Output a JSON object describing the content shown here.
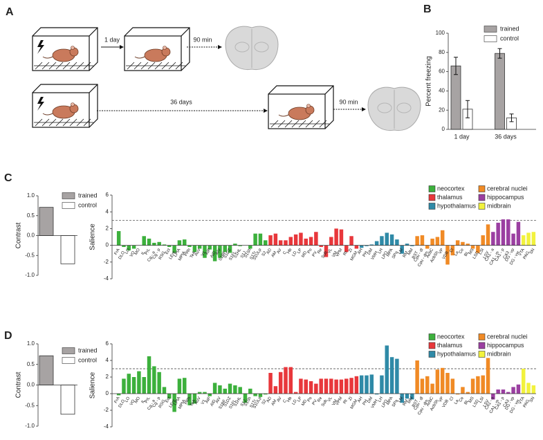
{
  "panel_labels": [
    "A",
    "B",
    "C",
    "D"
  ],
  "diagram": {
    "steps": [
      "1 day",
      "90 min",
      "36 days",
      "90 min"
    ]
  },
  "chart_data": [
    {
      "type": "bar",
      "ylabel": "Percent freezing",
      "categories": [
        "1 day",
        "36 days"
      ],
      "series": [
        {
          "name": "trained",
          "color": "#a7a3a3",
          "values": [
            66,
            79
          ],
          "errors": [
            9,
            5
          ]
        },
        {
          "name": "control",
          "color": "#ffffff",
          "values": [
            21,
            12
          ],
          "errors": [
            9,
            4
          ]
        }
      ],
      "ylim": [
        0,
        100
      ],
      "yticks": [
        0,
        20,
        40,
        60,
        80,
        100
      ],
      "legend": "upper right"
    },
    {
      "type": "bar",
      "ylabel": "Contrast",
      "series": [
        {
          "name": "trained",
          "color": "#a7a3a3",
          "values": [
            0.71
          ]
        },
        {
          "name": "control",
          "color": "#ffffff",
          "values": [
            -0.71
          ]
        }
      ],
      "ylim": [
        -1,
        1
      ],
      "yticks": [
        {
          "value": -1,
          "label": "-1.0"
        },
        -0.5,
        {
          "value": 0,
          "label": "0.0"
        },
        0.5,
        {
          "value": 1,
          "label": "1.0"
        }
      ],
      "legend": "upper right"
    },
    {
      "type": "bar",
      "ylabel": "Salience",
      "reference_line": 3,
      "series": [
        {
          "name": "neocortex",
          "color": "#3cb03c",
          "categories": [
            "FrA",
            "DLO",
            "LO",
            "VO",
            "MO",
            "IL",
            "PrL",
            "Cg - a",
            "Cg - p",
            "RSG",
            "Ect",
            "LEnt",
            "LPtA",
            "MPtA",
            "PRh",
            "TeA",
            "AuV",
            "V1",
            "AIP",
            "AID",
            "AIV",
            "S1BF",
            "S1DZ",
            "S1FL",
            "S1HL",
            "S1J",
            "S1Sh",
            "S1Tr",
            "S1ULp",
            "S2"
          ],
          "values": [
            1.7,
            -0.2,
            -0.6,
            -0.4,
            0.0,
            1.1,
            0.8,
            0.3,
            0.4,
            0.1,
            -0.2,
            -0.9,
            0.6,
            0.7,
            -0.2,
            -0.8,
            -0.4,
            -1.5,
            -0.5,
            -1.9,
            -1.5,
            -0.8,
            -0.9,
            0.2,
            -0.1,
            0.0,
            -0.4,
            1.4,
            1.4,
            0.6
          ]
        },
        {
          "name": "thalamus",
          "color": "#e8373b",
          "categories": [
            "AD",
            "AM",
            "AV",
            "C",
            "Hb",
            "LD",
            "LP",
            "MD",
            "Po",
            "PV",
            "Re",
            "Sub",
            "VL",
            "VM",
            "VPM",
            "Rt",
            "ZI",
            "MGM"
          ],
          "values": [
            1.2,
            1.4,
            0.6,
            0.6,
            1.0,
            1.3,
            1.5,
            0.8,
            1.0,
            1.6,
            -0.2,
            -1.4,
            1.0,
            2.0,
            1.9,
            -0.8,
            1.1,
            -0.4
          ]
        },
        {
          "name": "hypothalamus",
          "color": "#2f8aa7",
          "categories": [
            "AH",
            "PH",
            "DM",
            "VMH",
            "LH",
            "LPO",
            "MPA",
            "SPa",
            "LM",
            "RM",
            "MM"
          ],
          "values": [
            -0.3,
            -0.1,
            0.1,
            0.5,
            1.1,
            1.5,
            1.3,
            0.7,
            -1.0,
            0.2,
            -0.1
          ]
        },
        {
          "name": "cerebral nuclei",
          "color": "#f08a25",
          "categories": [
            "BST",
            "Cpu - dl",
            "Cpu - dm",
            "AcbC",
            "AcbSh",
            "VP",
            "VDB",
            "Cl",
            "La",
            "Ce",
            "BL",
            "MS",
            "LSD",
            "LSI",
            "LSV"
          ],
          "values": [
            1.1,
            1.2,
            -0.4,
            0.8,
            1.0,
            1.8,
            -2.3,
            -1.2,
            0.6,
            0.4,
            0.2,
            -0.4,
            -0.9,
            1.2,
            2.5
          ]
        },
        {
          "name": "hippocampus",
          "color": "#9b3fa1",
          "categories": [
            "CA1 - a",
            "CA1 - m",
            "CA1 - p",
            "CA3",
            "DG - vp",
            "DG - vw"
          ],
          "values": [
            1.6,
            2.7,
            3.1,
            3.1,
            1.4,
            2.8
          ]
        },
        {
          "name": "midbrain",
          "color": "#f2f23d",
          "categories": [
            "VTA",
            "PAG",
            "SN"
          ],
          "values": [
            1.2,
            1.5,
            1.6
          ]
        }
      ],
      "ylim": [
        -4,
        6
      ],
      "yticks": [
        -4,
        -2,
        0,
        2,
        4,
        6
      ],
      "legend": "upper right"
    },
    {
      "type": "bar",
      "ylabel": "Contrast",
      "series": [
        {
          "name": "trained",
          "color": "#a7a3a3",
          "values": [
            0.71
          ]
        },
        {
          "name": "control",
          "color": "#ffffff",
          "values": [
            -0.71
          ]
        }
      ],
      "ylim": [
        -1,
        1
      ],
      "yticks": [
        {
          "value": -1,
          "label": "-1.0"
        },
        -0.5,
        {
          "value": 0,
          "label": "0.0"
        },
        0.5,
        {
          "value": 1,
          "label": "1.0"
        }
      ],
      "legend": "upper right"
    },
    {
      "type": "bar",
      "ylabel": "Salience",
      "reference_line": 3,
      "series": [
        {
          "name": "neocortex",
          "color": "#3cb03c",
          "categories": [
            "FrA",
            "DLO",
            "LO",
            "VO",
            "MO",
            "IL",
            "PrL",
            "Cg - a",
            "Cg - p",
            "RSG",
            "Ect",
            "LEnt",
            "LPtA",
            "MPtA",
            "PRh",
            "TeA",
            "AuV",
            "V1",
            "AIP",
            "AID",
            "AIV",
            "S1BF",
            "S1DZ",
            "S1FL",
            "S1HL",
            "S1J",
            "S1Sh",
            "S1Tr",
            "S1ULp",
            "S2"
          ],
          "values": [
            -0.2,
            1.8,
            2.4,
            2.0,
            2.7,
            2.0,
            4.5,
            3.3,
            2.6,
            0.8,
            -0.6,
            -2.2,
            1.8,
            1.9,
            -1.4,
            -1.2,
            0.2,
            0.2,
            -0.3,
            1.3,
            1.0,
            0.6,
            1.2,
            1.0,
            0.8,
            -1.1,
            0.6,
            -0.3,
            -0.4,
            -0.1
          ]
        },
        {
          "name": "thalamus",
          "color": "#e8373b",
          "categories": [
            "AD",
            "AM",
            "AV",
            "C",
            "Hb",
            "LD",
            "LP",
            "MD",
            "Po",
            "PV",
            "Re",
            "Sub",
            "VL",
            "VM",
            "VPM",
            "Rt",
            "ZI",
            "MGM"
          ],
          "values": [
            2.5,
            0.9,
            2.6,
            3.2,
            3.2,
            0.2,
            1.8,
            1.7,
            1.5,
            1.2,
            1.8,
            1.8,
            1.8,
            1.7,
            1.7,
            1.8,
            1.9,
            2.1
          ]
        },
        {
          "name": "hypothalamus",
          "color": "#2f8aa7",
          "categories": [
            "AH",
            "PH",
            "DM",
            "VMH",
            "LH",
            "LPO",
            "MPA",
            "SPa",
            "LM",
            "RM",
            "MM"
          ],
          "values": [
            2.2,
            2.2,
            2.3,
            -0.1,
            2.2,
            5.8,
            4.4,
            4.2,
            -1.1,
            -0.6,
            -0.7
          ]
        },
        {
          "name": "cerebral nuclei",
          "color": "#f08a25",
          "categories": [
            "BST",
            "Cpu - dl",
            "Cpu - dm",
            "AcbC",
            "AcbSh",
            "VP",
            "VDB",
            "Cl",
            "La",
            "Ce",
            "BL",
            "MS",
            "LSD",
            "LSI",
            "LSV"
          ],
          "values": [
            4.0,
            1.8,
            2.1,
            1.2,
            2.9,
            3.1,
            2.5,
            1.8,
            -0.1,
            0.8,
            0.2,
            1.8,
            2.1,
            2.2,
            4.3
          ]
        },
        {
          "name": "hippocampus",
          "color": "#9b3fa1",
          "categories": [
            "CA1 - a",
            "CA1 - m",
            "CA1 - p",
            "CA3",
            "DG - vp",
            "DG - vw"
          ],
          "values": [
            -0.7,
            0.5,
            0.5,
            0.2,
            0.8,
            1.1
          ]
        },
        {
          "name": "midbrain",
          "color": "#f2f23d",
          "categories": [
            "VTA",
            "PAG",
            "SN"
          ],
          "values": [
            3.0,
            1.3,
            1.0
          ]
        }
      ],
      "ylim": [
        -4,
        6
      ],
      "yticks": [
        -4,
        -2,
        0,
        2,
        4,
        6
      ],
      "legend": "upper right"
    }
  ]
}
